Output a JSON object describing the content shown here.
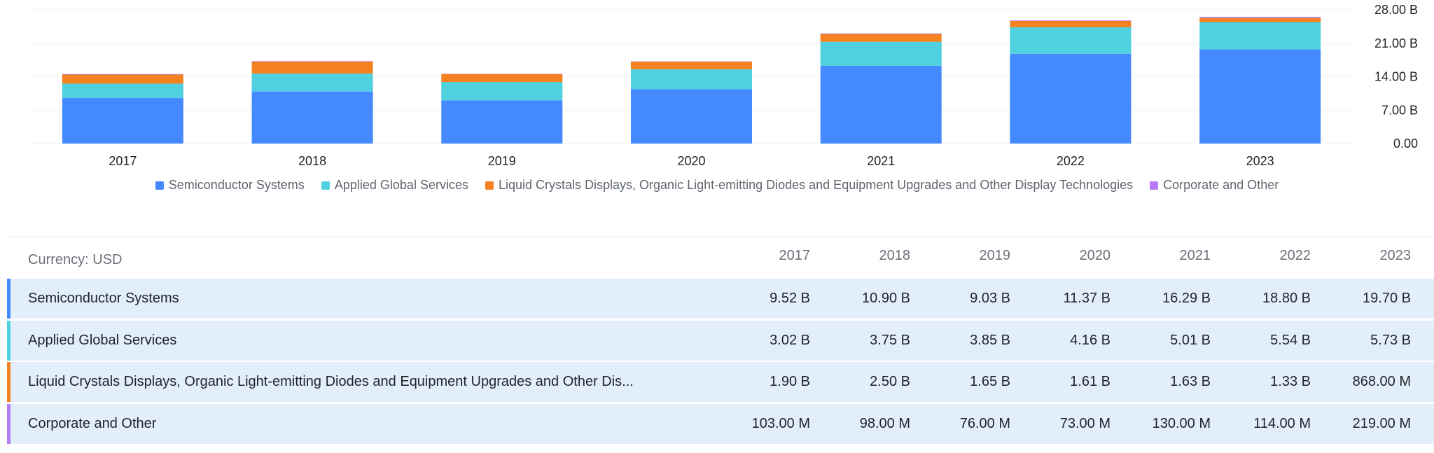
{
  "chart_data": {
    "type": "bar",
    "stacked": true,
    "categories": [
      "2017",
      "2018",
      "2019",
      "2020",
      "2021",
      "2022",
      "2023"
    ],
    "series": [
      {
        "name": "Semiconductor Systems",
        "color": "#4589ff",
        "values": [
          9.52,
          10.9,
          9.03,
          11.37,
          16.29,
          18.8,
          19.7
        ]
      },
      {
        "name": "Applied Global Services",
        "color": "#4fd1e0",
        "values": [
          3.02,
          3.75,
          3.85,
          4.16,
          5.01,
          5.54,
          5.73
        ]
      },
      {
        "name": "Liquid Crystals Displays, Organic Light-emitting Diodes and Equipment Upgrades and Other Display Technologies",
        "color": "#f58220",
        "values": [
          1.9,
          2.5,
          1.65,
          1.61,
          1.63,
          1.33,
          0.868
        ]
      },
      {
        "name": "Corporate and Other",
        "color": "#b57cf6",
        "values": [
          0.103,
          0.098,
          0.076,
          0.073,
          0.13,
          0.114,
          0.219
        ]
      }
    ],
    "yticks": [
      "0.00",
      "7.00 B",
      "14.00 B",
      "21.00 B",
      "28.00 B"
    ],
    "ylim": [
      0,
      28
    ],
    "grid": true,
    "legend_position": "bottom"
  },
  "table": {
    "currency_label": "Currency: USD",
    "years": [
      "2017",
      "2018",
      "2019",
      "2020",
      "2021",
      "2022",
      "2023"
    ],
    "rows": [
      {
        "label": "Semiconductor Systems",
        "color": "#4589ff",
        "values": [
          "9.52 B",
          "10.90 B",
          "9.03 B",
          "11.37 B",
          "16.29 B",
          "18.80 B",
          "19.70 B"
        ]
      },
      {
        "label": "Applied Global Services",
        "color": "#4fd1e0",
        "values": [
          "3.02 B",
          "3.75 B",
          "3.85 B",
          "4.16 B",
          "5.01 B",
          "5.54 B",
          "5.73 B"
        ]
      },
      {
        "label": "Liquid Crystals Displays, Organic Light-emitting Diodes and Equipment Upgrades and Other Dis...",
        "color": "#f58220",
        "values": [
          "1.90 B",
          "2.50 B",
          "1.65 B",
          "1.61 B",
          "1.63 B",
          "1.33 B",
          "868.00 M"
        ]
      },
      {
        "label": "Corporate and Other",
        "color": "#b57cf6",
        "values": [
          "103.00 M",
          "98.00 M",
          "76.00 M",
          "73.00 M",
          "130.00 M",
          "114.00 M",
          "219.00 M"
        ]
      }
    ]
  }
}
